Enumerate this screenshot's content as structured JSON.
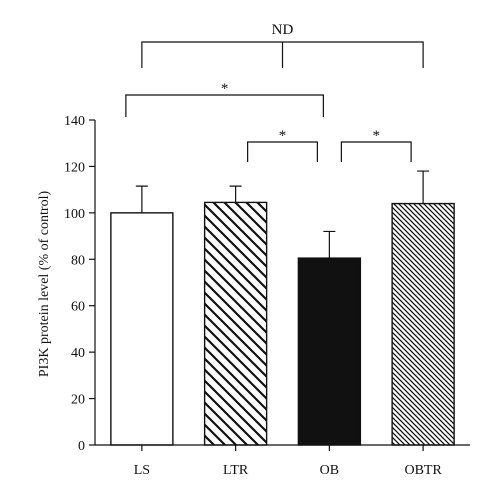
{
  "chart_data": {
    "type": "bar",
    "ylabel": "PI3K protein level (% of control)",
    "xlabel": "",
    "ylim": [
      0,
      140
    ],
    "yticks": [
      0,
      20,
      40,
      60,
      80,
      100,
      120,
      140
    ],
    "categories": [
      "LS",
      "LTR",
      "OB",
      "OBTR"
    ],
    "values": [
      100,
      104.5,
      80.5,
      104
    ],
    "errors": [
      11.5,
      7,
      11.5,
      14
    ],
    "fills": [
      "white",
      "hatch-dense-down",
      "black",
      "hatch-fine-down"
    ],
    "colors": {
      "bar_stroke": "#111111",
      "black_fill": "#111111",
      "white_fill": "#ffffff"
    },
    "significance": [
      {
        "from": 0,
        "to": 3,
        "label": "ND",
        "level": 0
      },
      {
        "from": 0,
        "to": 2,
        "label": "*",
        "level": 1
      },
      {
        "from": 1,
        "to": 2,
        "label": "*",
        "level": 2
      },
      {
        "from": 2,
        "to": 3,
        "label": "*",
        "level": 2
      }
    ],
    "grid": false,
    "legend": "none"
  }
}
